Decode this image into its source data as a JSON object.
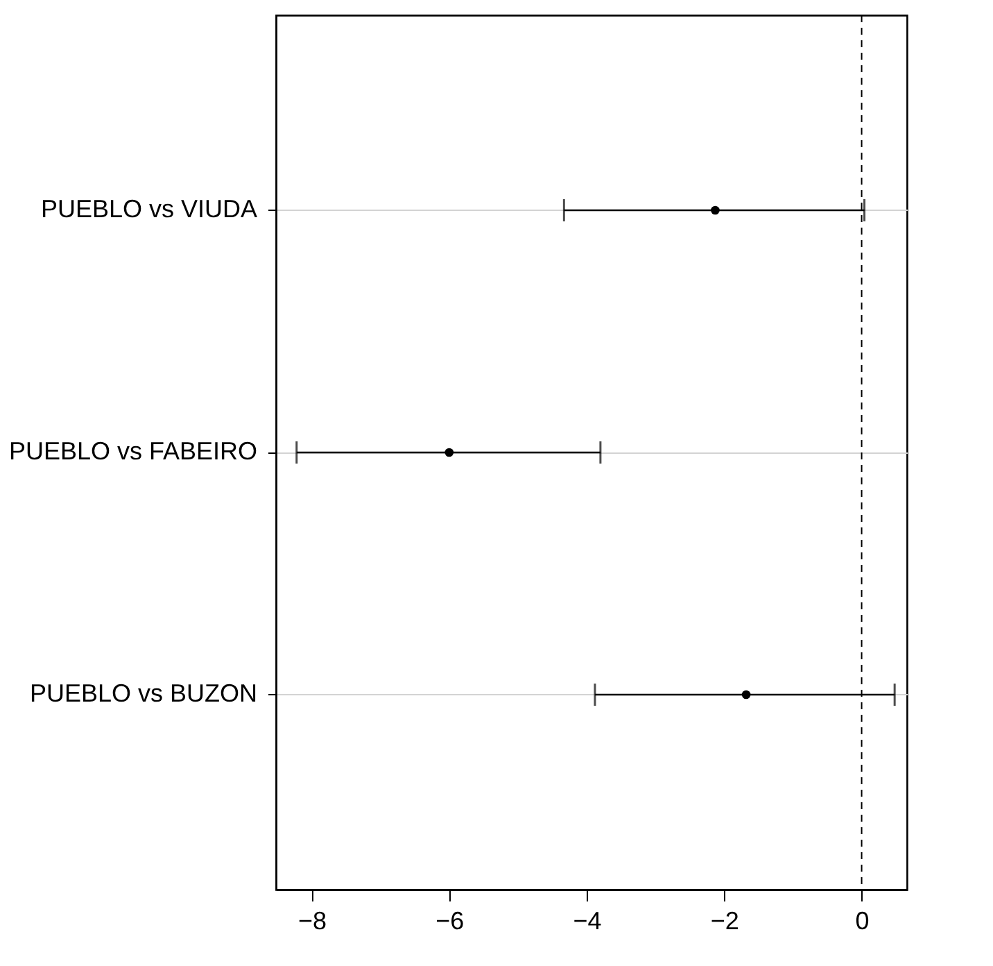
{
  "chart_data": {
    "type": "scatter",
    "orientation": "horizontal",
    "categories": [
      "PUEBLO vs VIUDA",
      "PUEBLO vs FABEIRO",
      "PUEBLO vs BUZON"
    ],
    "values": [
      -2.13,
      -6.0,
      -1.68
    ],
    "errors": [
      [
        -4.33,
        0.04
      ],
      [
        -8.22,
        -3.8
      ],
      [
        -3.88,
        0.48
      ]
    ],
    "color": "#000000",
    "marker": "circle",
    "grid": "y",
    "xlim": [
      -8.52,
      0.66
    ],
    "xticks": [
      -8,
      -6,
      -4,
      -2,
      0
    ],
    "ref_lines": [
      {
        "axis": "x",
        "value": 0,
        "line_style": "dashed",
        "color": "#000000"
      }
    ]
  }
}
